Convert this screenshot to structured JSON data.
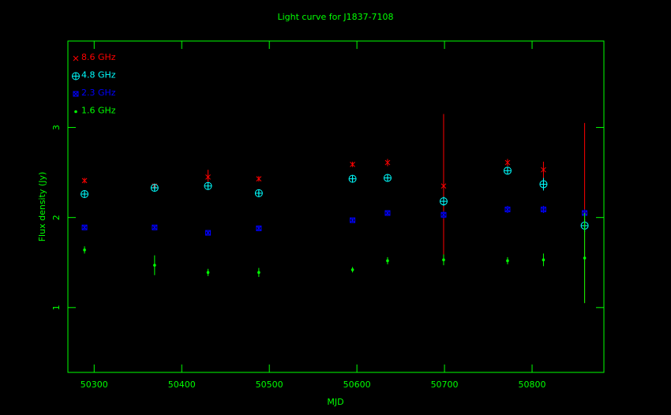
{
  "chart_data": {
    "type": "scatter",
    "title": "Light curve for J1837-7108",
    "x_label": "MJD",
    "y_label": "Flux density (Jy)",
    "xlim": [
      50270,
      50882
    ],
    "ylim": [
      0.28,
      3.96
    ],
    "xticks": [
      50300,
      50400,
      50500,
      50600,
      50700,
      50800
    ],
    "yticks": [
      1,
      2,
      3
    ],
    "axis_color": "#00ff00",
    "legend": "upper left",
    "x": [
      50289,
      50369,
      50430,
      50488,
      50595,
      50635,
      50699,
      50772,
      50813,
      50860
    ],
    "series": [
      {
        "name": "8.6 GHz",
        "color": "#ff0000",
        "marker": "x",
        "values": [
          2.41,
          2.35,
          2.45,
          2.43,
          2.59,
          2.61,
          2.35,
          2.61,
          2.53,
          2.05
        ],
        "errors": [
          0.03,
          0.03,
          0.08,
          0.03,
          0.03,
          0.04,
          0.8,
          0.04,
          0.09,
          1.0
        ]
      },
      {
        "name": "4.8 GHz",
        "color": "#00ffff",
        "marker": "circle-plus",
        "values": [
          2.26,
          2.33,
          2.35,
          2.27,
          2.43,
          2.44,
          2.18,
          2.52,
          2.37,
          1.91
        ],
        "errors": [
          0.03,
          0.03,
          0.03,
          0.03,
          0.03,
          0.03,
          0.05,
          0.03,
          0.07,
          0.07
        ]
      },
      {
        "name": "2.3 GHz",
        "color": "#0000ff",
        "marker": "square-x",
        "values": [
          1.89,
          1.89,
          1.83,
          1.88,
          1.97,
          2.05,
          2.03,
          2.09,
          2.09,
          2.05
        ],
        "errors": [
          0.02,
          0.02,
          0.02,
          0.03,
          0.02,
          0.03,
          0.04,
          0.04,
          0.04,
          0.04
        ]
      },
      {
        "name": "1.6 GHz",
        "color": "#00ff00",
        "marker": "dot",
        "values": [
          1.64,
          1.47,
          1.39,
          1.39,
          1.42,
          1.52,
          1.53,
          1.52,
          1.53,
          1.55
        ],
        "errors": [
          0.04,
          0.11,
          0.04,
          0.05,
          0.03,
          0.04,
          0.06,
          0.04,
          0.07,
          0.5
        ]
      }
    ]
  }
}
